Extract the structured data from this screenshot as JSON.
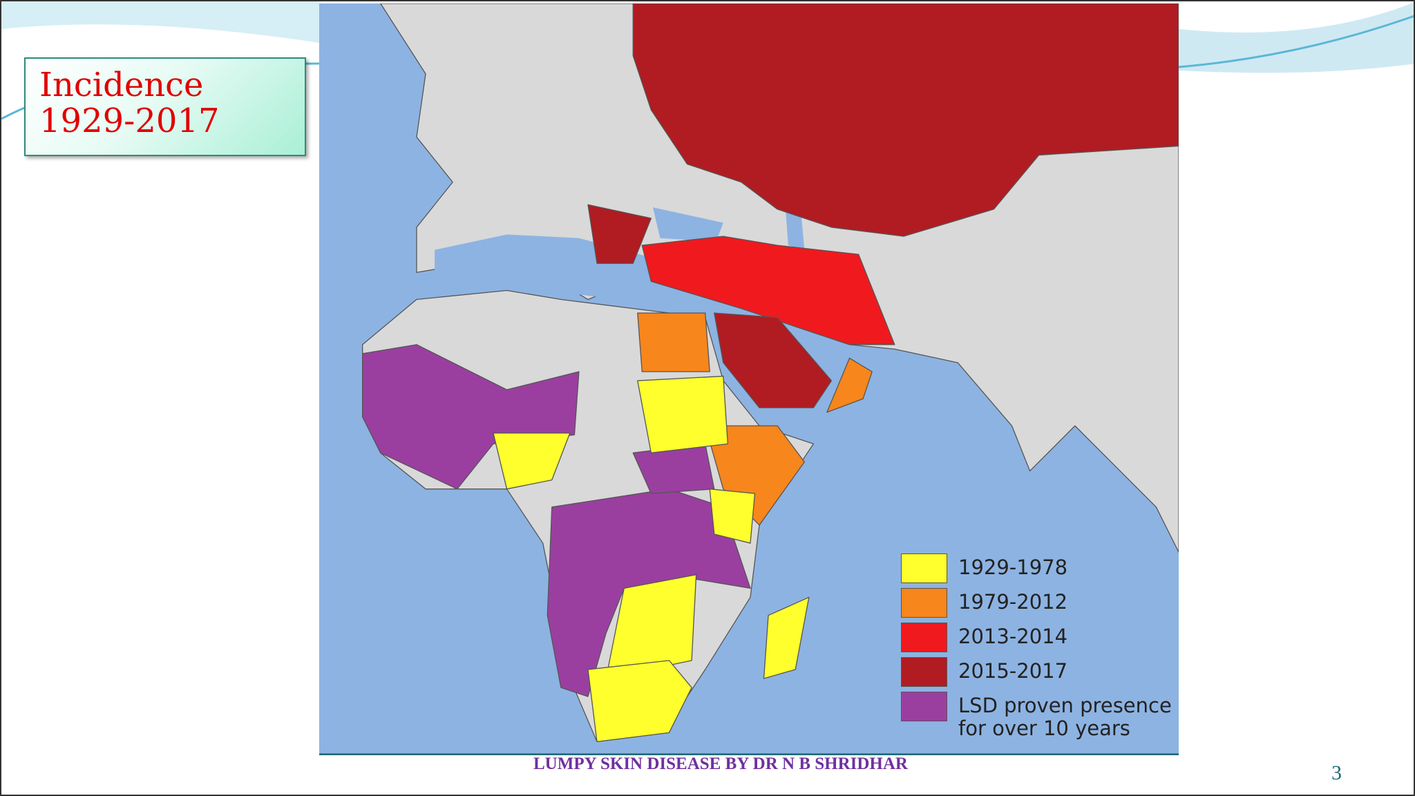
{
  "title": [
    "Incidence",
    "1929-2017"
  ],
  "legend": [
    {
      "label": [
        "1929-1978"
      ],
      "color": "#ffff2e"
    },
    {
      "label": [
        "1979-2012"
      ],
      "color": "#f7861c"
    },
    {
      "label": [
        "2013-2014"
      ],
      "color": "#f0191e"
    },
    {
      "label": [
        "2015-2017"
      ],
      "color": "#b01c22"
    },
    {
      "label": [
        "LSD proven presence",
        "for over 10 years"
      ],
      "color": "#9a3fa0"
    }
  ],
  "footer": "LUMPY SKIN DISEASE BY DR N B SHRIDHAR",
  "page_number": "3"
}
